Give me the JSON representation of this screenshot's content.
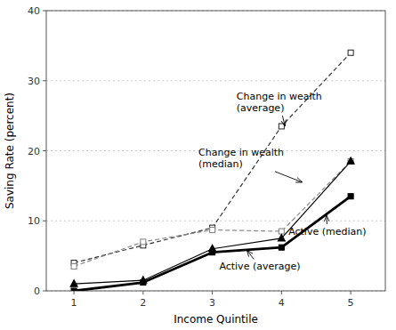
{
  "chart_data": {
    "type": "line",
    "x": [
      1,
      2,
      3,
      4,
      5
    ],
    "series": [
      {
        "color": "#333333",
        "line_style": "dashed",
        "marker": "open-square",
        "values": [
          4.0,
          6.5,
          9.0,
          23.5,
          34.0
        ]
      },
      {
        "color": "#888888",
        "line_style": "dashed",
        "marker": "open-square",
        "values": [
          3.5,
          7.0,
          8.7,
          8.5,
          18.5
        ]
      },
      {
        "color": "#000000",
        "line_style": "solid",
        "marker": "square",
        "values": [
          0.0,
          1.2,
          5.5,
          6.2,
          13.5
        ]
      },
      {
        "color": "#000000",
        "line_style": "solid",
        "marker": "triangle-up",
        "values": [
          1.0,
          1.5,
          6.0,
          7.5,
          18.5
        ]
      }
    ],
    "xlabel": "Income Quintile",
    "ylabel": "Saving Rate (percent)",
    "xlim": [
      0.6,
      5.5
    ],
    "ylim": [
      0,
      40
    ],
    "xticks": [
      1,
      2,
      3,
      4,
      5
    ],
    "yticks": [
      0,
      10,
      20,
      30,
      40
    ],
    "grid": true,
    "annotations": [
      {
        "text": "Change in wealth\n(average)",
        "x": 4.05,
        "y": 23.5,
        "text_x": 3.35,
        "text_y": 27.0
      },
      {
        "text": "Change in wealth\n(median)",
        "x": 4.3,
        "y": 15.5,
        "text_x": 2.8,
        "text_y": 19.0
      },
      {
        "text": "Active (average)",
        "x": 3.5,
        "y": 5.8,
        "text_x": 3.1,
        "text_y": 3.5
      },
      {
        "text": "Active (median)",
        "x": 4.65,
        "y": 10.8,
        "text_x": 4.1,
        "text_y": 8.5
      }
    ]
  }
}
